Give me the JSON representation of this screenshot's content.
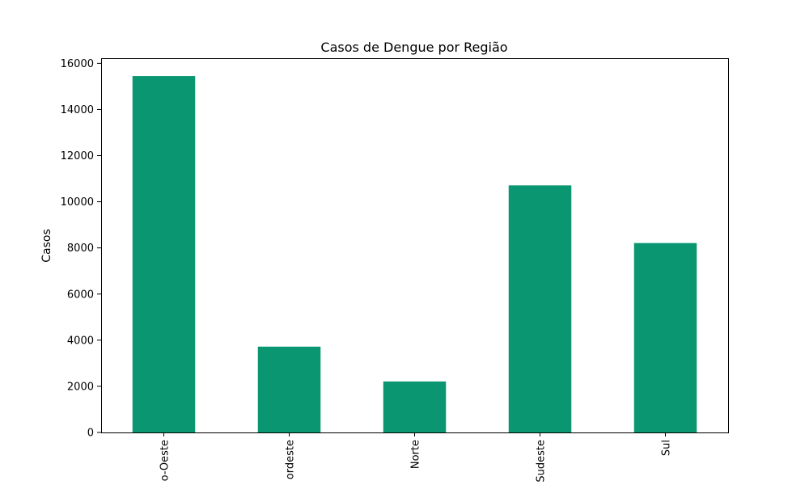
{
  "chart_data": {
    "type": "bar",
    "title": "Casos de Dengue por Região",
    "xlabel": "",
    "ylabel": "Casos",
    "categories": [
      "o-Oeste",
      "ordeste",
      "Norte",
      "Sudeste",
      "Sul"
    ],
    "values": [
      15450,
      3720,
      2210,
      10710,
      8210
    ],
    "ylim": [
      0,
      16223
    ],
    "yticks": [
      0,
      2000,
      4000,
      6000,
      8000,
      10000,
      12000,
      14000,
      16000
    ],
    "ytick_labels": [
      "0",
      "2000",
      "4000",
      "6000",
      "8000",
      "10000",
      "12000",
      "14000",
      "16000"
    ],
    "grid": false,
    "legend": "none",
    "colors": {
      "bar": "#0a9670",
      "axis": "#000000",
      "background": "#ffffff"
    }
  }
}
